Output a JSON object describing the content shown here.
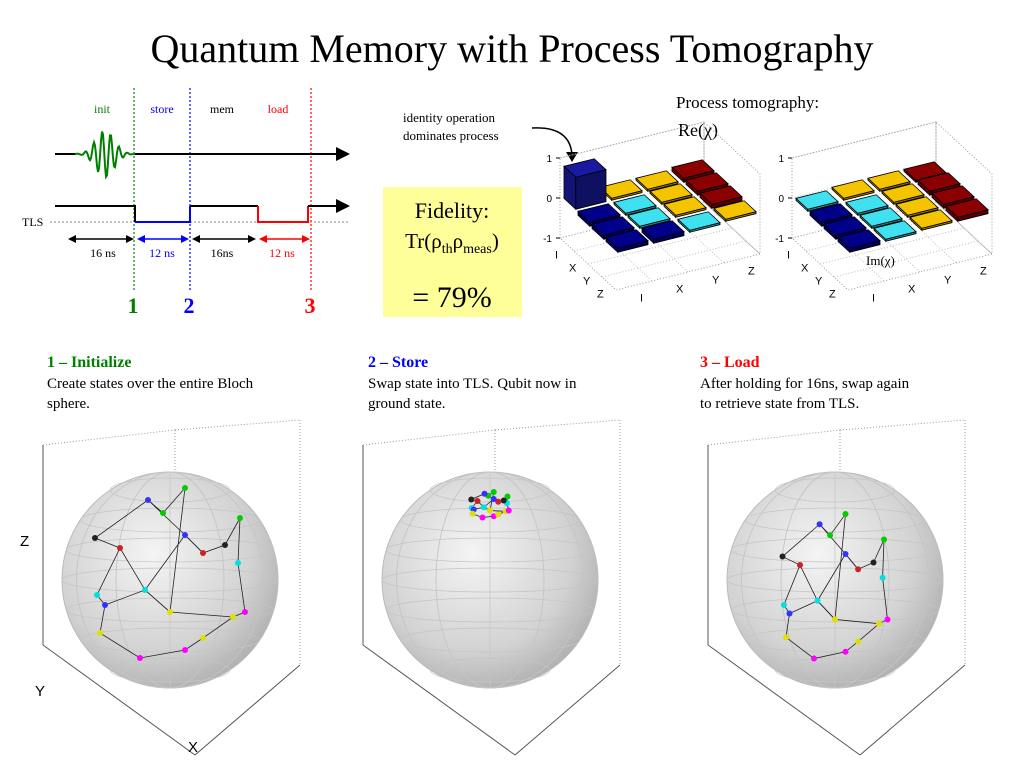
{
  "title": "Quantum Memory with Process Tomography",
  "sequence": {
    "stages": [
      "init",
      "store",
      "mem",
      "load"
    ],
    "tls_label": "TLS",
    "durations": [
      "16 ns",
      "12 ns",
      "16ns",
      "12 ns"
    ],
    "markers": [
      "1",
      "2",
      "3"
    ]
  },
  "annotation": [
    "identity operation",
    "dominates process"
  ],
  "tomography": {
    "heading": "Process tomography:",
    "re_label": "Re(χ)",
    "im_label": "Im(χ)",
    "zticks": [
      1,
      0,
      -1
    ],
    "basis": [
      "I",
      "X",
      "Y",
      "Z"
    ],
    "re": {
      "values": [
        [
          0.8,
          0.05,
          0.05,
          0.1
        ],
        [
          -0.1,
          -0.05,
          0.05,
          0.1
        ],
        [
          -0.1,
          -0.05,
          0.05,
          0.1
        ],
        [
          -0.1,
          -0.1,
          -0.05,
          0.05
        ]
      ],
      "colors": [
        [
          "#1a1aa0",
          "#f5c400",
          "#f5c400",
          "#8b0000"
        ],
        [
          "#00008b",
          "#3fe0f0",
          "#f5c400",
          "#8b0000"
        ],
        [
          "#00008b",
          "#3fe0f0",
          "#f5c400",
          "#8b0000"
        ],
        [
          "#00008b",
          "#00008b",
          "#3fe0f0",
          "#f5c400"
        ]
      ]
    },
    "im": {
      "values": [
        [
          -0.05,
          0.05,
          0.05,
          0.05
        ],
        [
          -0.1,
          -0.05,
          0.05,
          0.1
        ],
        [
          -0.1,
          -0.05,
          0.05,
          0.1
        ],
        [
          -0.1,
          -0.05,
          0.05,
          0.1
        ]
      ],
      "colors": [
        [
          "#3fe0f0",
          "#f5c400",
          "#f5c400",
          "#8b0000"
        ],
        [
          "#00008b",
          "#3fe0f0",
          "#f5c400",
          "#8b0000"
        ],
        [
          "#00008b",
          "#3fe0f0",
          "#f5c400",
          "#8b0000"
        ],
        [
          "#00008b",
          "#3fe0f0",
          "#f5c400",
          "#8b0000"
        ]
      ]
    }
  },
  "fidelity": {
    "label": "Fidelity:",
    "formula": {
      "prefix": "Tr(ρ",
      "sub1": "th",
      "mid": "ρ",
      "sub2": "meas",
      "suffix": ")"
    },
    "result": "= 79%"
  },
  "sections": [
    {
      "heading": "1 – Initialize",
      "lines": [
        "Create states over the entire Bloch",
        "sphere."
      ]
    },
    {
      "heading": "2 – Store",
      "lines": [
        "Swap state into TLS.  Qubit now in",
        "ground state."
      ]
    },
    {
      "heading": "3 – Load",
      "lines": [
        "After holding for 16ns, swap again",
        "to retrieve state from TLS."
      ]
    }
  ],
  "bloch_axes": [
    "Z",
    "Y",
    "X"
  ]
}
